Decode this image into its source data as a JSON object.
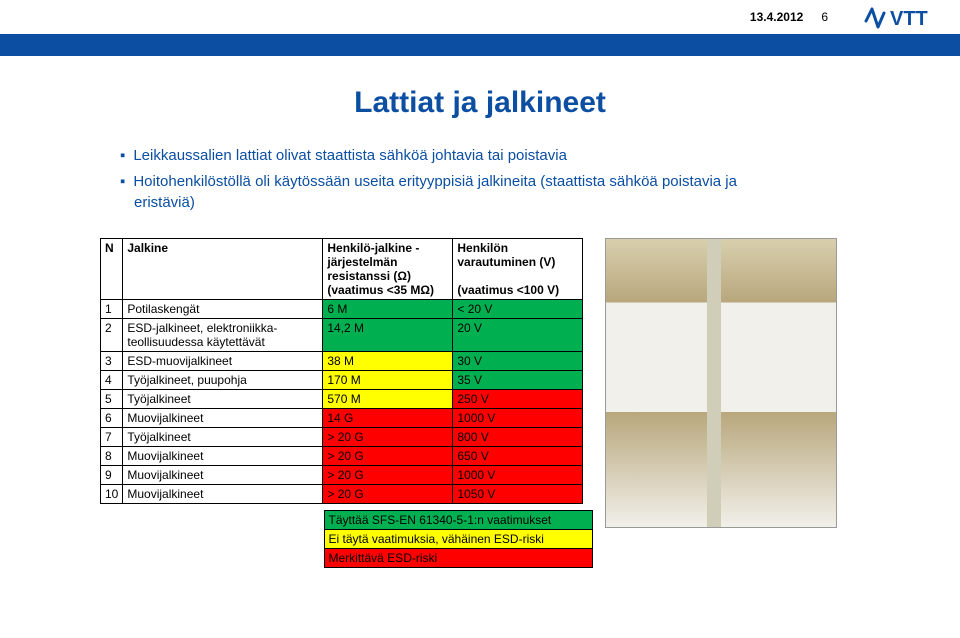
{
  "header": {
    "date": "13.4.2012",
    "page": "6",
    "logo_text": "VTT",
    "logo_color": "#0b4ea2"
  },
  "title": "Lattiat ja jalkineet",
  "bullets": [
    "Leikkaussalien lattiat olivat staattista sähköä johtavia tai poistavia",
    "Hoitohenkilöstöllä oli käytössään useita erityyppisiä jalkineita (staattista sähköä poistavia ja eristäviä)"
  ],
  "table": {
    "head": {
      "n": "N",
      "jalkine": "Jalkine",
      "col1_a": "Henkilö-jalkine -",
      "col1_b": "järjestelmän",
      "col1_c": "resistanssi (Ω)",
      "col1_d": "(vaatimus <35 MΩ)",
      "col2_a": "Henkilön",
      "col2_b": "varautuminen (V)",
      "col2_c": "",
      "col2_d": "(vaatimus <100 V)"
    },
    "rows": [
      {
        "n": "1",
        "name": "Potilaskengät",
        "v1": "6 M",
        "v2": "< 20 V",
        "c1": "#00b050",
        "c2": "#00b050"
      },
      {
        "n": "2",
        "name": "ESD-jalkineet, elektroniikka-\nteollisuudessa käytettävät",
        "v1": "14,2 M",
        "v2": "20 V",
        "c1": "#00b050",
        "c2": "#00b050"
      },
      {
        "n": "3",
        "name": "ESD-muovijalkineet",
        "v1": "38 M",
        "v2": "30 V",
        "c1": "#ffff00",
        "c2": "#00b050"
      },
      {
        "n": "4",
        "name": "Työjalkineet, puupohja",
        "v1": "170 M",
        "v2": "35 V",
        "c1": "#ffff00",
        "c2": "#00b050"
      },
      {
        "n": "5",
        "name": "Työjalkineet",
        "v1": "570 M",
        "v2": "250 V",
        "c1": "#ffff00",
        "c2": "#ff0000"
      },
      {
        "n": "6",
        "name": "Muovijalkineet",
        "v1": "14 G",
        "v2": "1000 V",
        "c1": "#ff0000",
        "c2": "#ff0000"
      },
      {
        "n": "7",
        "name": "Työjalkineet",
        "v1": "> 20 G",
        "v2": "800 V",
        "c1": "#ff0000",
        "c2": "#ff0000"
      },
      {
        "n": "8",
        "name": "Muovijalkineet",
        "v1": "> 20 G",
        "v2": "650 V",
        "c1": "#ff0000",
        "c2": "#ff0000"
      },
      {
        "n": "9",
        "name": "Muovijalkineet",
        "v1": "> 20 G",
        "v2": "1000 V",
        "c1": "#ff0000",
        "c2": "#ff0000"
      },
      {
        "n": "10",
        "name": "Muovijalkineet",
        "v1": "> 20 G",
        "v2": "1050 V",
        "c1": "#ff0000",
        "c2": "#ff0000"
      }
    ]
  },
  "legend": [
    {
      "text": "Täyttää SFS-EN 61340-5-1:n vaatimukset",
      "bg": "#00b050"
    },
    {
      "text": "Ei täytä vaatimuksia, vähäinen ESD-riski",
      "bg": "#ffff00"
    },
    {
      "text": "Merkittävä ESD-riski",
      "bg": "#ff0000"
    }
  ],
  "colors": {
    "brand_blue": "#0b4ea2",
    "green": "#00b050",
    "yellow": "#ffff00",
    "red": "#ff0000",
    "white": "#ffffff",
    "black": "#000000"
  }
}
